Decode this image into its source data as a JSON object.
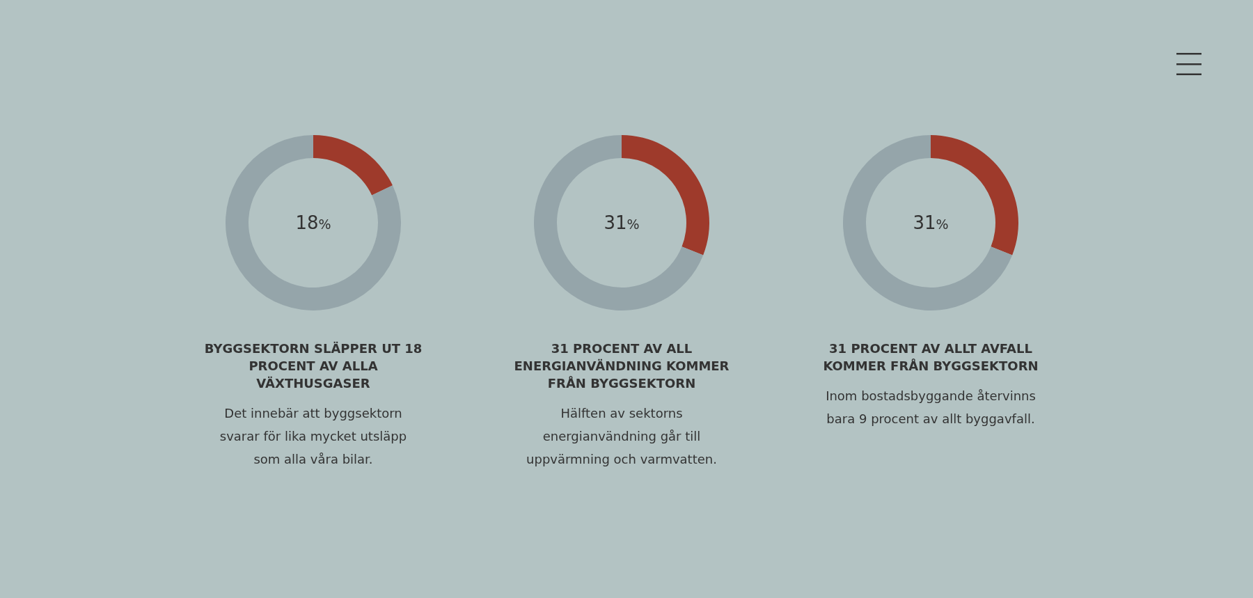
{
  "chart_data": [
    {
      "type": "donut",
      "title": "BYGGSEKTORN SLÄPPER UT 18 PROCENT AV ALLA VÄXTHUSGASER",
      "categories": [
        null,
        null
      ],
      "values": [
        18,
        82
      ],
      "colors": [
        "#9e3a2b",
        "#95a5aa"
      ],
      "annotations": [
        "18%",
        "Det innebär att byggsektorn svarar för lika mycket utsläpp som alla våra bilar."
      ]
    },
    {
      "type": "donut",
      "title": "31 PROCENT AV ALL ENERGIANVÄNDNING KOMMER FRÅN BYGGSEKTORN",
      "categories": [
        null,
        null
      ],
      "values": [
        31,
        69
      ],
      "colors": [
        "#9e3a2b",
        "#95a5aa"
      ],
      "annotations": [
        "31%",
        "Hälften av sektorns energianvändning går till uppvärmning och varmvatten."
      ]
    },
    {
      "type": "donut",
      "title": "31 PROCENT AV ALLT AVFALL KOMMER FRÅN BYGGSEKTORN",
      "categories": [
        null,
        null
      ],
      "values": [
        31,
        69
      ],
      "colors": [
        "#9e3a2b",
        "#95a5aa"
      ],
      "annotations": [
        "31%",
        "Inom bostadsbyggande återvinns bara 9 procent av allt byggavfall."
      ]
    }
  ]
}
